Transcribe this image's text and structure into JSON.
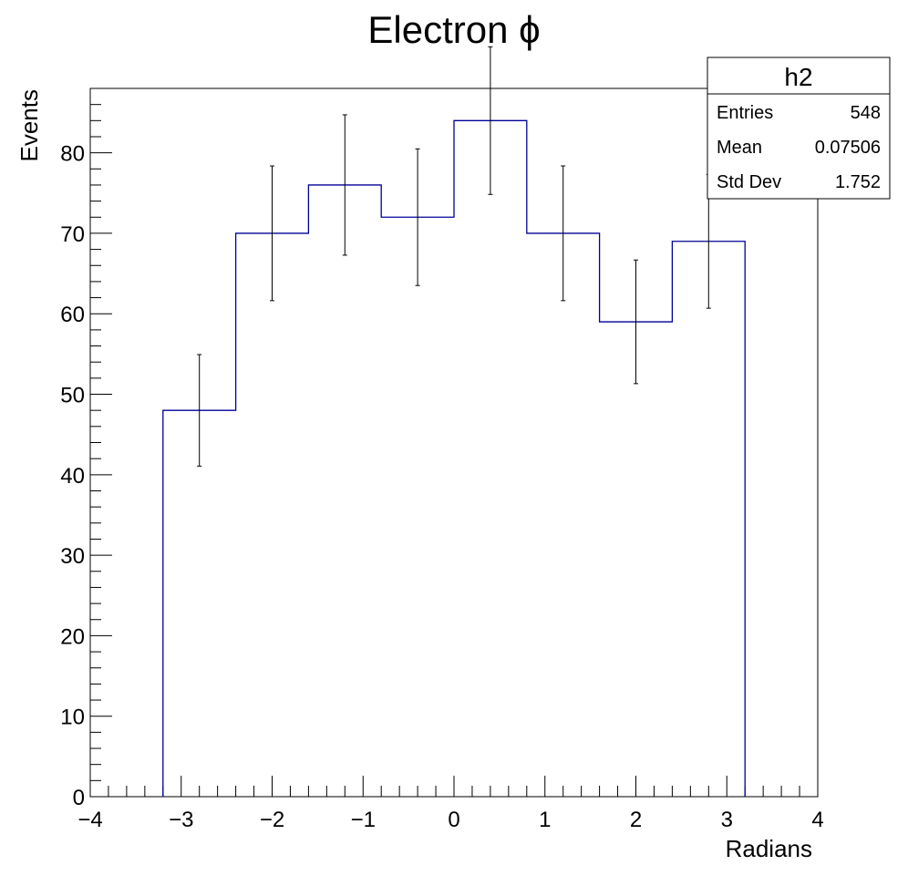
{
  "chart_data": {
    "type": "histogram",
    "title": "Electron ϕ",
    "xlabel": "Radians",
    "ylabel": "Events",
    "xlim": [
      -4,
      4
    ],
    "ylim": [
      0,
      88
    ],
    "x_ticks": [
      -4,
      -3,
      -2,
      -1,
      0,
      1,
      2,
      3,
      4
    ],
    "y_ticks": [
      0,
      10,
      20,
      30,
      40,
      50,
      60,
      70,
      80
    ],
    "bin_edges": [
      -3.2,
      -2.4,
      -1.6,
      -0.8,
      0.0,
      0.8,
      1.6,
      2.4,
      3.2
    ],
    "series": [
      {
        "values": [
          48,
          70,
          76,
          72,
          84,
          70,
          59,
          69
        ],
        "errors": [
          6.93,
          8.37,
          8.72,
          8.49,
          9.17,
          8.37,
          7.68,
          8.31
        ],
        "color": "#000099"
      }
    ],
    "grid": false,
    "stats_box": {
      "name": "h2",
      "rows": [
        {
          "label": "Entries",
          "value": "548"
        },
        {
          "label": "Mean",
          "value": "0.07506"
        },
        {
          "label": "Std Dev",
          "value": "1.752"
        }
      ]
    }
  }
}
